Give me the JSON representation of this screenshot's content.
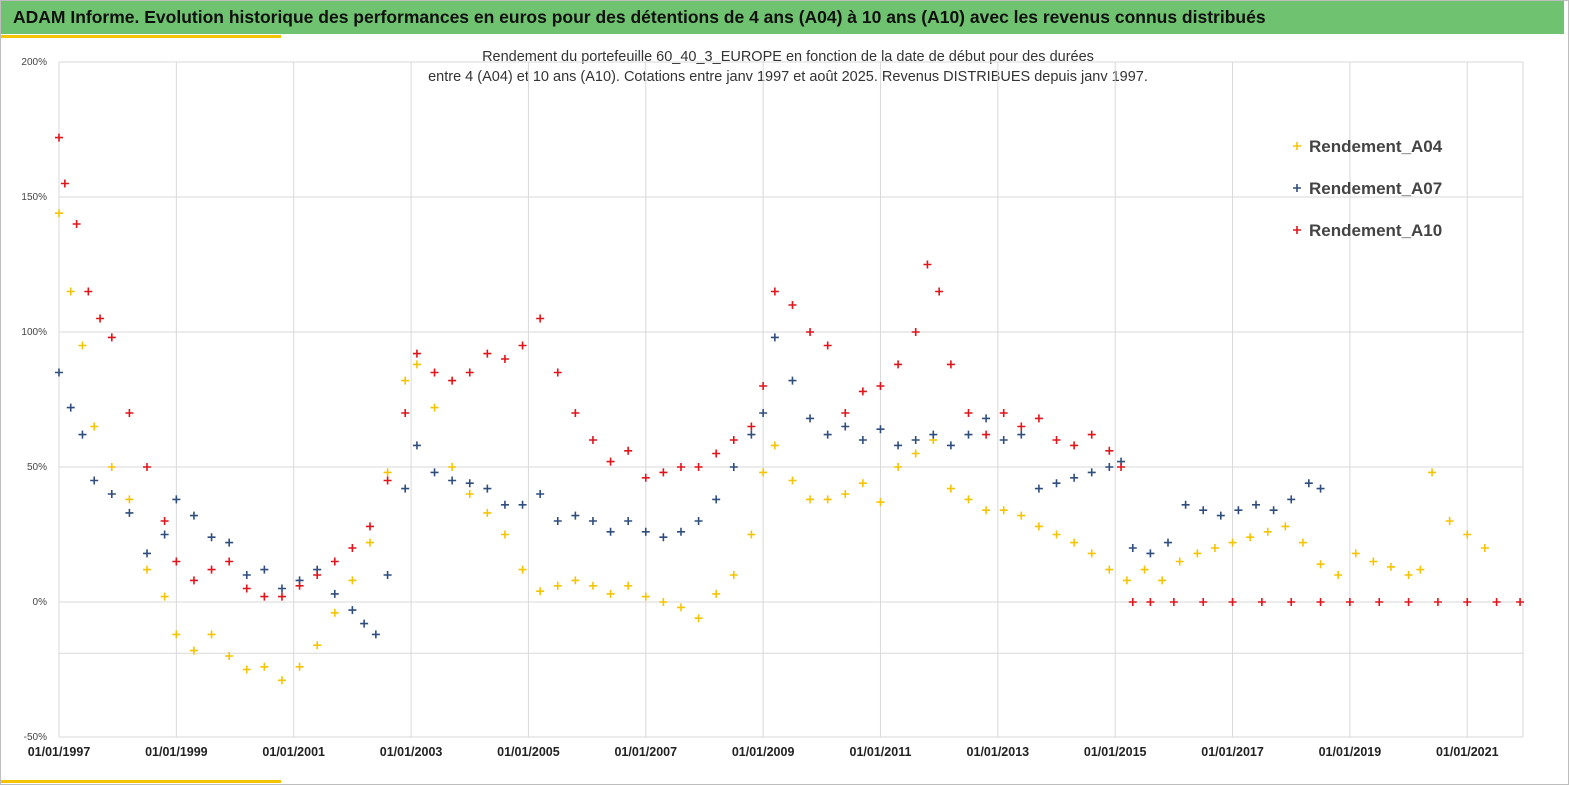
{
  "banner": {
    "title": "ADAM Informe. Evolution historique des performances en euros pour des détentions de 4 ans (A04) à 10 ans (A10) avec les revenus connus distribués",
    "color": "#6fc26f",
    "accent": "#f5c400"
  },
  "chart_data": {
    "type": "scatter",
    "title_line1": "Rendement du portefeuille 60_40_3_EUROPE  en fonction de la date de début pour des durées",
    "title_line2": "entre 4 (A04) et 10 ans (A10). Cotations  entre janv 1997 et août 2025. Revenus DISTRIBUES depuis janv 1997.",
    "xlabel": "",
    "ylabel": "",
    "x_tick_labels": [
      "01/01/1997",
      "01/01/1999",
      "01/01/2001",
      "01/01/2003",
      "01/01/2005",
      "01/01/2007",
      "01/01/2009",
      "01/01/2011",
      "01/01/2013",
      "01/01/2015",
      "01/01/2017",
      "01/01/2019",
      "01/01/2021"
    ],
    "x_ticks": [
      1997,
      1999,
      2001,
      2003,
      2005,
      2007,
      2009,
      2011,
      2013,
      2015,
      2017,
      2019,
      2021
    ],
    "xlim": [
      1997.0,
      2021.95
    ],
    "y_tick_labels": [
      "200%",
      "150%",
      "100%",
      "50%",
      "0%",
      "-50%"
    ],
    "y_ticks": [
      200,
      150,
      100,
      50,
      0,
      -50
    ],
    "ylim": [
      -50,
      200
    ],
    "extra_gridline_y": -19,
    "grid": true,
    "legend_position": "top-right",
    "series": [
      {
        "name": "Rendement_A04",
        "color": "#f5c400",
        "x": [
          1997.0,
          1997.2,
          1997.4,
          1997.6,
          1997.9,
          1998.2,
          1998.5,
          1998.8,
          1999.0,
          1999.3,
          1999.6,
          1999.9,
          2000.2,
          2000.5,
          2000.8,
          2001.1,
          2001.4,
          2001.7,
          2002.0,
          2002.3,
          2002.6,
          2002.9,
          2003.1,
          2003.4,
          2003.7,
          2004.0,
          2004.3,
          2004.6,
          2004.9,
          2005.2,
          2005.5,
          2005.8,
          2006.1,
          2006.4,
          2006.7,
          2007.0,
          2007.3,
          2007.6,
          2007.9,
          2008.2,
          2008.5,
          2008.8,
          2009.0,
          2009.2,
          2009.5,
          2009.8,
          2010.1,
          2010.4,
          2010.7,
          2011.0,
          2011.3,
          2011.6,
          2011.9,
          2012.2,
          2012.5,
          2012.8,
          2013.1,
          2013.4,
          2013.7,
          2014.0,
          2014.3,
          2014.6,
          2014.9,
          2015.2,
          2015.5,
          2015.8,
          2016.1,
          2016.4,
          2016.7,
          2017.0,
          2017.3,
          2017.6,
          2017.9,
          2018.2,
          2018.5,
          2018.8,
          2019.1,
          2019.4,
          2019.7,
          2020.0,
          2020.2,
          2020.4,
          2020.7,
          2021.0,
          2021.3
        ],
        "y": [
          144,
          115,
          95,
          65,
          50,
          38,
          12,
          2,
          -12,
          -18,
          -12,
          -20,
          -25,
          -24,
          -29,
          -24,
          -16,
          -4,
          8,
          22,
          48,
          82,
          88,
          72,
          50,
          40,
          33,
          25,
          12,
          4,
          6,
          8,
          6,
          3,
          6,
          2,
          0,
          -2,
          -6,
          3,
          10,
          25,
          48,
          58,
          45,
          38,
          38,
          40,
          44,
          37,
          50,
          55,
          60,
          42,
          38,
          34,
          34,
          32,
          28,
          25,
          22,
          18,
          12,
          8,
          12,
          8,
          15,
          18,
          20,
          22,
          24,
          26,
          28,
          22,
          14,
          10,
          18,
          15,
          13,
          10,
          12,
          48,
          30,
          25,
          20
        ]
      },
      {
        "name": "Rendement_A07",
        "color": "#2f4e7e",
        "x": [
          1997.0,
          1997.2,
          1997.4,
          1997.6,
          1997.9,
          1998.2,
          1998.5,
          1998.8,
          1999.0,
          1999.3,
          1999.6,
          1999.9,
          2000.2,
          2000.5,
          2000.8,
          2001.1,
          2001.4,
          2001.7,
          2002.0,
          2002.2,
          2002.4,
          2002.6,
          2002.9,
          2003.1,
          2003.4,
          2003.7,
          2004.0,
          2004.3,
          2004.6,
          2004.9,
          2005.2,
          2005.5,
          2005.8,
          2006.1,
          2006.4,
          2006.7,
          2007.0,
          2007.3,
          2007.6,
          2007.9,
          2008.2,
          2008.5,
          2008.8,
          2009.0,
          2009.2,
          2009.5,
          2009.8,
          2010.1,
          2010.4,
          2010.7,
          2011.0,
          2011.3,
          2011.6,
          2011.9,
          2012.2,
          2012.5,
          2012.8,
          2013.1,
          2013.4,
          2013.7,
          2014.0,
          2014.3,
          2014.6,
          2014.9,
          2015.1,
          2015.3,
          2015.6,
          2015.9,
          2016.2,
          2016.5,
          2016.8,
          2017.1,
          2017.4,
          2017.7,
          2018.0,
          2018.3,
          2018.5
        ],
        "y": [
          85,
          72,
          62,
          45,
          40,
          33,
          18,
          25,
          38,
          32,
          24,
          22,
          10,
          12,
          5,
          8,
          12,
          3,
          -3,
          -8,
          -12,
          10,
          42,
          58,
          48,
          45,
          44,
          42,
          36,
          36,
          40,
          30,
          32,
          30,
          26,
          30,
          26,
          24,
          26,
          30,
          38,
          50,
          62,
          70,
          98,
          82,
          68,
          62,
          65,
          60,
          64,
          58,
          60,
          62,
          58,
          62,
          68,
          60,
          62,
          42,
          44,
          46,
          48,
          50,
          52,
          20,
          18,
          22,
          36,
          34,
          32,
          34,
          36,
          34,
          38,
          44,
          42
        ]
      },
      {
        "name": "Rendement_A10",
        "color": "#e0151b",
        "x": [
          1997.0,
          1997.1,
          1997.3,
          1997.5,
          1997.7,
          1997.9,
          1998.2,
          1998.5,
          1998.8,
          1999.0,
          1999.3,
          1999.6,
          1999.9,
          2000.2,
          2000.5,
          2000.8,
          2001.1,
          2001.4,
          2001.7,
          2002.0,
          2002.3,
          2002.6,
          2002.9,
          2003.1,
          2003.4,
          2003.7,
          2004.0,
          2004.3,
          2004.6,
          2004.9,
          2005.2,
          2005.5,
          2005.8,
          2006.1,
          2006.4,
          2006.7,
          2007.0,
          2007.3,
          2007.6,
          2007.9,
          2008.2,
          2008.5,
          2008.8,
          2009.0,
          2009.2,
          2009.5,
          2009.8,
          2010.1,
          2010.4,
          2010.7,
          2011.0,
          2011.3,
          2011.6,
          2011.8,
          2012.0,
          2012.2,
          2012.5,
          2012.8,
          2013.1,
          2013.4,
          2013.7,
          2014.0,
          2014.3,
          2014.6,
          2014.9,
          2015.1,
          2015.3,
          2015.6,
          2016.0,
          2016.5,
          2017.0,
          2017.5,
          2018.0,
          2018.5,
          2019.0,
          2019.5,
          2020.0,
          2020.5,
          2021.0,
          2021.5,
          2021.9
        ],
        "y": [
          172,
          155,
          140,
          115,
          105,
          98,
          70,
          50,
          30,
          15,
          8,
          12,
          15,
          5,
          2,
          2,
          6,
          10,
          15,
          20,
          28,
          45,
          70,
          92,
          85,
          82,
          85,
          92,
          90,
          95,
          105,
          85,
          70,
          60,
          52,
          56,
          46,
          48,
          50,
          50,
          55,
          60,
          65,
          80,
          115,
          110,
          100,
          95,
          70,
          78,
          80,
          88,
          100,
          125,
          115,
          88,
          70,
          62,
          70,
          65,
          68,
          60,
          58,
          62,
          56,
          50,
          0,
          0,
          0,
          0,
          0,
          0,
          0,
          0,
          0,
          0,
          0,
          0,
          0,
          0,
          0
        ]
      }
    ]
  }
}
